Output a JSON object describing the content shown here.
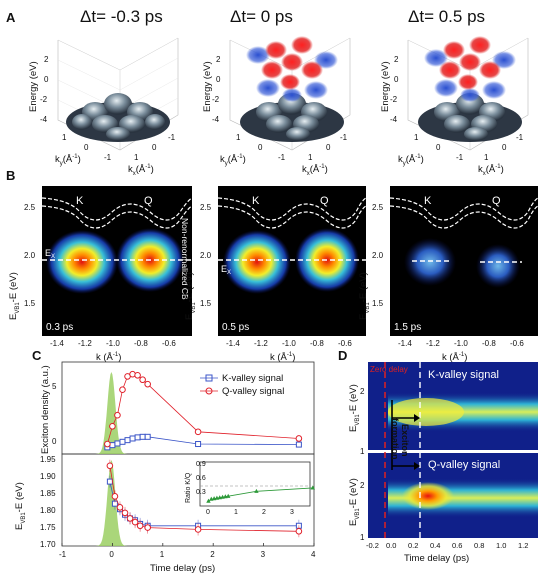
{
  "panelA": {
    "label": "A",
    "titles": [
      "Δt= -0.3 ps",
      "Δt= 0 ps",
      "Δt= 0.5 ps"
    ],
    "zlabel": "Energy (eV)",
    "xlabel": "k",
    "xlabel_sub": "x",
    "xlabel_unit": "(Å",
    "ylabel": "k",
    "ylabel_sub": "y",
    "ylabel_unit": "(Å",
    "exp": "-1",
    "close": ")",
    "z_ticks": [
      "2",
      "0",
      "-2",
      "-4"
    ],
    "k_ticks": [
      "1",
      "0",
      "-1"
    ]
  },
  "panelB": {
    "label": "B",
    "valley_labels": [
      "K",
      "Q"
    ],
    "ylabel": "E",
    "ylabel_sub": "VB1",
    "ylabel_tail": "-E (eV)",
    "y_ticks": [
      "2.5",
      "2.0",
      "1.5"
    ],
    "x_ticks": [
      "-1.4",
      "-1.2",
      "-1.0",
      "-0.8",
      "-0.6"
    ],
    "xlabel": "k (Å",
    "exp": "-1",
    "close": ")",
    "ex_label": "E",
    "ex_sub": "X",
    "cb_note": "Non-renormalized CB",
    "delays": [
      "0.3 ps",
      "0.5 ps",
      "1.5 ps"
    ]
  },
  "panelC": {
    "label": "C",
    "top_ylabel": "Exciton density (a.u.)",
    "top_yticks": [
      "5",
      "0"
    ],
    "legend": [
      "K-valley signal",
      "Q-valley signal"
    ],
    "bottom_ylabel": "E",
    "bottom_ylabel_sub": "VB1",
    "bottom_ylabel_tail": "-E (eV)",
    "bottom_yticks": [
      "1.95",
      "1.90",
      "1.85",
      "1.80",
      "1.75",
      "1.70"
    ],
    "xlabel": "Time delay (ps)",
    "xticks": [
      "-1",
      "0",
      "1",
      "2",
      "3",
      "4"
    ],
    "inset_ylabel": "Ratio K/Q",
    "inset_yticks": [
      "0.9",
      "0.6",
      "0.3"
    ],
    "inset_xticks": [
      "0",
      "1",
      "2",
      "3"
    ],
    "colors": {
      "k": "#3b55c8",
      "q": "#e0202a",
      "fill": "#9bcf63",
      "inset": "#2e9a3a"
    }
  },
  "panelD": {
    "label": "D",
    "top_title": "K-valley signal",
    "bottom_title": "Q-valley signal",
    "zero_delay": "Zero delay",
    "formation_1": "Exciton",
    "formation_2": "formation",
    "ylabel": "E",
    "ylabel_sub": "VB1",
    "ylabel_tail": "-E (eV)",
    "yticks": [
      "2",
      "1"
    ],
    "xticks": [
      "-0.2",
      "0.0",
      "0.2",
      "0.4",
      "0.6",
      "0.8",
      "1.0",
      "1.2"
    ],
    "xlabel": "Time delay (ps)"
  },
  "chart_data": [
    {
      "type": "scatter",
      "xlabel": "Time delay (ps)",
      "ylabel": "Exciton density (a.u.)",
      "xlim": [
        -1,
        4
      ],
      "ylim": [
        -0.5,
        7.8
      ],
      "series": [
        {
          "name": "K-valley signal",
          "x": [
            -0.1,
            0,
            0.1,
            0.2,
            0.3,
            0.4,
            0.5,
            0.6,
            0.7,
            1.7,
            3.7
          ],
          "y": [
            0.1,
            0.3,
            0.45,
            0.6,
            0.75,
            0.9,
            1.0,
            1.05,
            1.05,
            0.4,
            0.35
          ]
        },
        {
          "name": "Q-valley signal",
          "x": [
            -0.1,
            0,
            0.1,
            0.2,
            0.3,
            0.4,
            0.5,
            0.6,
            0.7,
            1.7,
            3.7
          ],
          "y": [
            0.4,
            2.0,
            3.0,
            5.3,
            6.5,
            6.7,
            6.6,
            6.2,
            5.8,
            1.5,
            0.9
          ]
        }
      ]
    },
    {
      "type": "scatter",
      "xlabel": "Time delay (ps)",
      "ylabel": "E_VB1-E (eV)",
      "xlim": [
        -1,
        4
      ],
      "ylim": [
        1.7,
        1.95
      ],
      "series": [
        {
          "name": "K-valley signal",
          "x": [
            -0.05,
            0.05,
            0.15,
            0.25,
            0.35,
            0.45,
            0.55,
            0.7,
            1.7,
            3.7
          ],
          "y": [
            1.875,
            1.815,
            1.8,
            1.785,
            1.775,
            1.77,
            1.76,
            1.755,
            1.755,
            1.755
          ]
        },
        {
          "name": "Q-valley signal",
          "x": [
            -0.05,
            0.05,
            0.15,
            0.25,
            0.35,
            0.45,
            0.55,
            0.7,
            1.7,
            3.7
          ],
          "y": [
            1.918,
            1.835,
            1.805,
            1.79,
            1.775,
            1.765,
            1.755,
            1.75,
            1.745,
            1.74
          ]
        }
      ]
    },
    {
      "type": "line",
      "ylabel": "Ratio K/Q",
      "xlim": [
        -0.3,
        3.6
      ],
      "ylim": [
        0,
        0.9
      ],
      "series": [
        {
          "name": "",
          "x": [
            0.0,
            0.1,
            0.2,
            0.3,
            0.4,
            0.5,
            0.6,
            0.7,
            1.7,
            3.7
          ],
          "y": [
            0.1,
            0.14,
            0.15,
            0.16,
            0.17,
            0.18,
            0.19,
            0.2,
            0.3,
            0.37
          ]
        }
      ]
    }
  ]
}
